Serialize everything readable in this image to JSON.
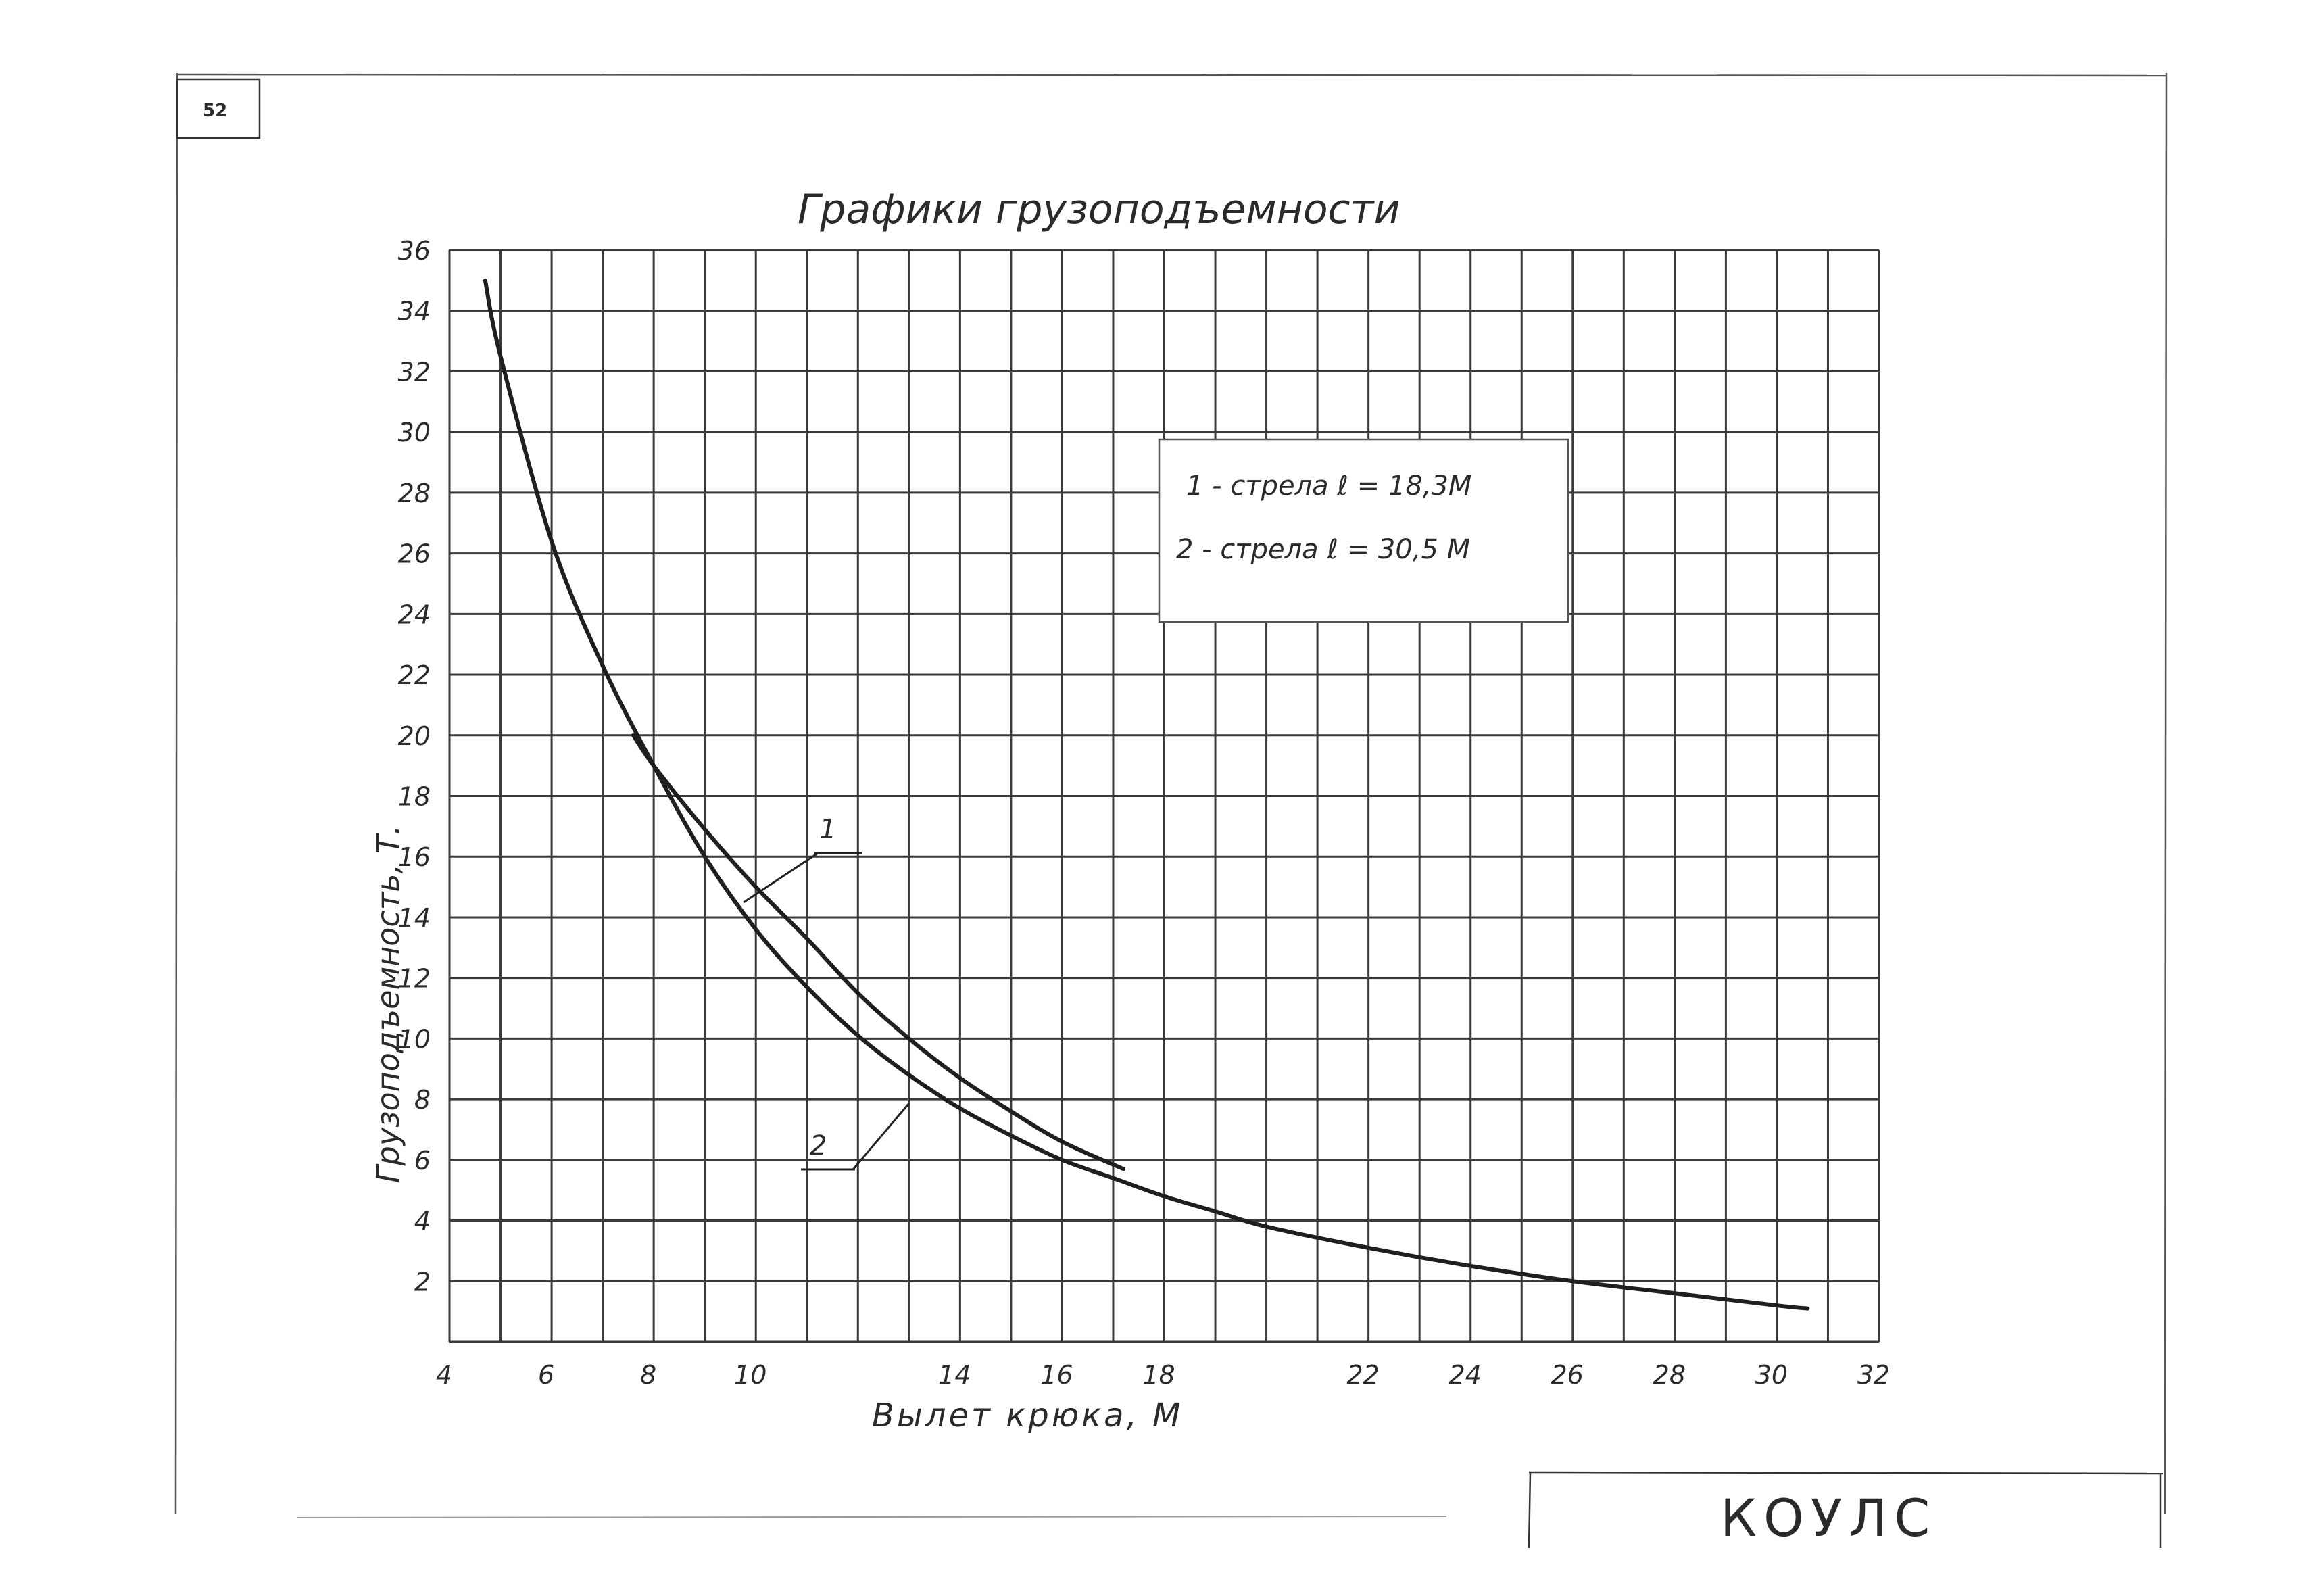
{
  "page": {
    "number": "52"
  },
  "stamp": {
    "text": "КОУЛС"
  },
  "chart_data": {
    "type": "line",
    "title": "Графики грузоподъемности",
    "xlabel": "Вылет крюка, М",
    "ylabel": "Грузоподъемность, Т.",
    "xlim": [
      4,
      32
    ],
    "ylim": [
      0,
      36
    ],
    "x_ticks": [
      "4",
      "6",
      "8",
      "10",
      "",
      "14",
      "16",
      "18",
      "",
      "22",
      "24",
      "26",
      "28",
      "30",
      "32"
    ],
    "y_ticks": [
      "2",
      "4",
      "6",
      "8",
      "10",
      "12",
      "14",
      "16",
      "18",
      "20",
      "22",
      "24",
      "26",
      "28",
      "30",
      "32",
      "34",
      "36"
    ],
    "grid": true,
    "legend_position": "upper-right",
    "legend": [
      {
        "label": "1 - стрела ℓ = 18,3М"
      },
      {
        "label": "2 - стрела ℓ = 30,5 М"
      }
    ],
    "series": [
      {
        "label": "1",
        "x": [
          7.6,
          8,
          9,
          10,
          11,
          12,
          13,
          14,
          15,
          16,
          17.2
        ],
        "y": [
          20.0,
          19.0,
          16.9,
          15.0,
          13.3,
          11.5,
          10.0,
          8.7,
          7.6,
          6.6,
          5.7
        ]
      },
      {
        "label": "2",
        "x": [
          4.7,
          5,
          6,
          7,
          8,
          9,
          10,
          11,
          12,
          13,
          14,
          15,
          16,
          17,
          18,
          19,
          20,
          22,
          24,
          26,
          28,
          30,
          30.6
        ],
        "y": [
          35.0,
          32.5,
          26.4,
          22.3,
          19.0,
          16.0,
          13.6,
          11.7,
          10.1,
          8.8,
          7.7,
          6.8,
          6.0,
          5.4,
          4.8,
          4.3,
          3.8,
          3.1,
          2.5,
          2.0,
          1.6,
          1.2,
          1.1
        ]
      }
    ]
  }
}
